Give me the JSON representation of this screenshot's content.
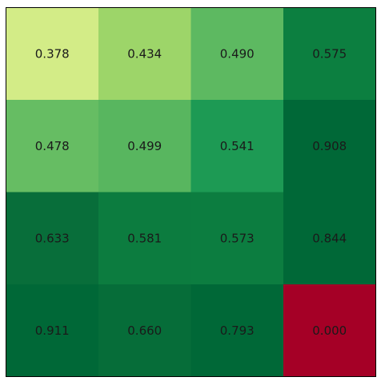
{
  "chart_data": {
    "type": "heatmap",
    "rows": 4,
    "cols": 4,
    "values": [
      [
        0.378,
        0.434,
        0.49,
        0.575
      ],
      [
        0.478,
        0.499,
        0.541,
        0.908
      ],
      [
        0.633,
        0.581,
        0.573,
        0.844
      ],
      [
        0.911,
        0.66,
        0.793,
        0.0
      ]
    ],
    "value_format": "0.000",
    "title": "",
    "xlabel": "",
    "ylabel": "",
    "colormap": "RdYlGn",
    "grid": false,
    "axes_visible": false,
    "cell_colors": [
      [
        "#d3ec87",
        "#9dd569",
        "#5db961",
        "#0c7f40"
      ],
      [
        "#66bd63",
        "#58b65f",
        "#1d9a54",
        "#006837"
      ],
      [
        "#086e3a",
        "#0c7c3f",
        "#0c7d40",
        "#006837"
      ],
      [
        "#006837",
        "#066d39",
        "#006837",
        "#a50026"
      ]
    ]
  }
}
